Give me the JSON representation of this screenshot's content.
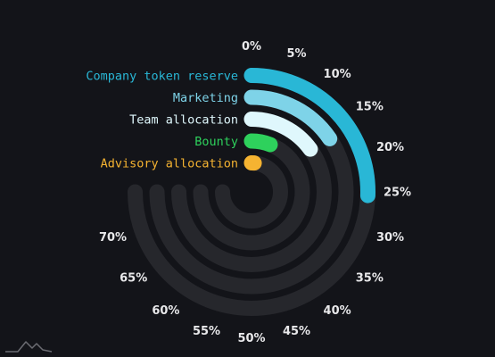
{
  "chart_data": {
    "type": "radial-bar",
    "title": "",
    "value_axis": {
      "min": 0,
      "max": 75,
      "unit": "%",
      "tick_labels": [
        "0%",
        "5%",
        "10%",
        "15%",
        "20%",
        "25%",
        "30%",
        "35%",
        "40%",
        "45%",
        "50%",
        "55%",
        "60%",
        "65%",
        "70%"
      ]
    },
    "series": [
      {
        "name": "Company token reserve",
        "value": 25.5,
        "color": "#29b7d6"
      },
      {
        "name": "Marketing",
        "value": 15.5,
        "color": "#7ed3e8"
      },
      {
        "name": "Team allocation",
        "value": 15,
        "color": "#dff7fc"
      },
      {
        "name": "Bounty",
        "value": 6,
        "color": "#2ed15c"
      },
      {
        "name": "Advisory allocation",
        "value": 1.5,
        "color": "#f5b331"
      }
    ],
    "track_color": "#26272c",
    "legend_placement": "left of bars"
  },
  "watermark": {
    "icon": "chart-brand-logo-icon"
  }
}
